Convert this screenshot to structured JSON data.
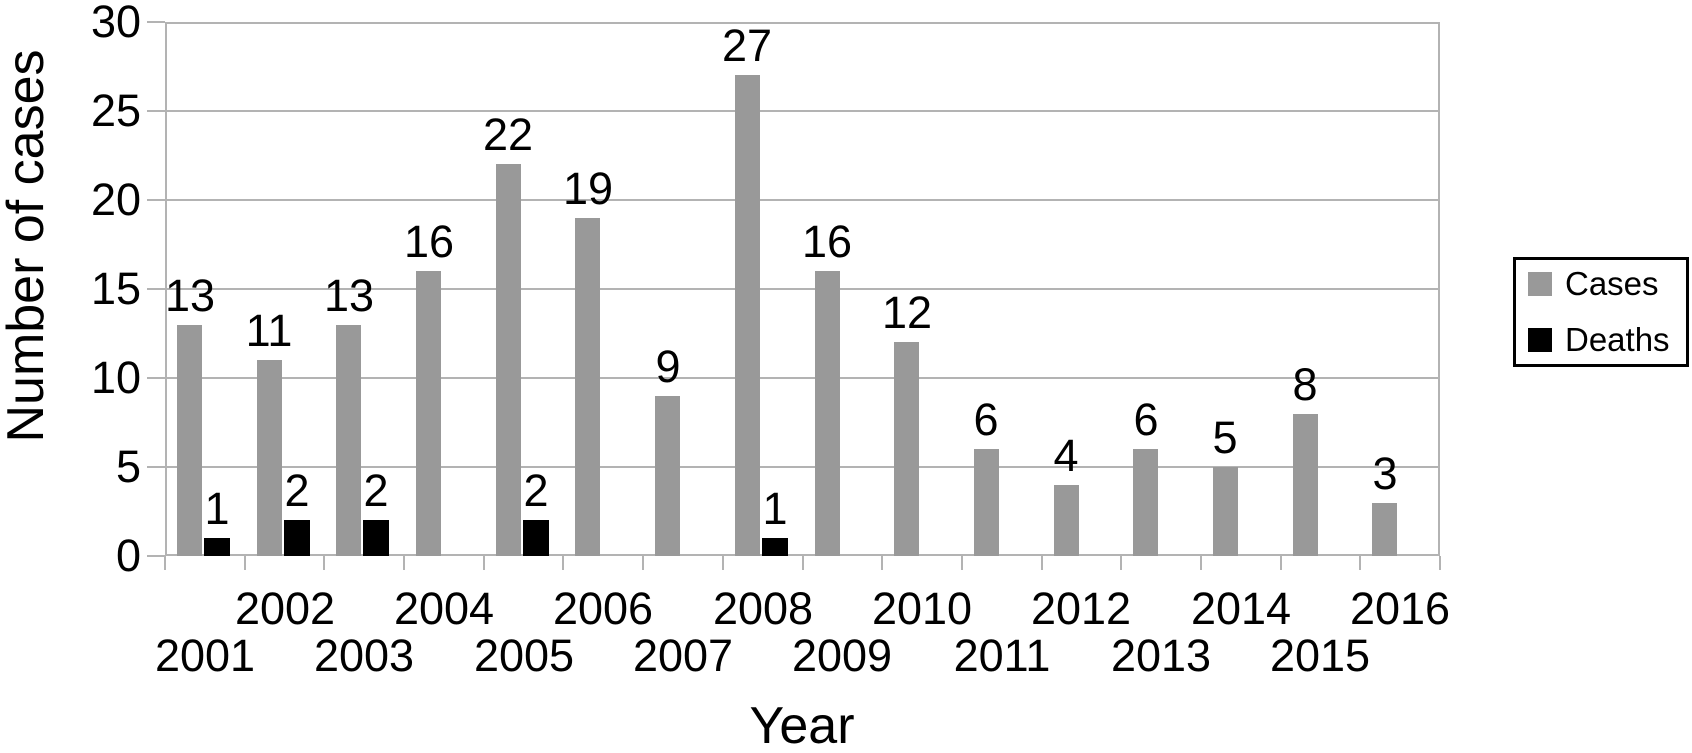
{
  "chart_data": {
    "type": "bar",
    "title": "",
    "xlabel": "Year",
    "ylabel": "Number of cases",
    "categories": [
      "2001",
      "2002",
      "2003",
      "2004",
      "2005",
      "2006",
      "2007",
      "2008",
      "2009",
      "2010",
      "2011",
      "2012",
      "2013",
      "2014",
      "2015",
      "2016"
    ],
    "series": [
      {
        "name": "Cases",
        "color": "#999999",
        "values": [
          13,
          11,
          13,
          16,
          22,
          19,
          9,
          27,
          16,
          12,
          6,
          4,
          6,
          5,
          8,
          3
        ]
      },
      {
        "name": "Deaths",
        "color": "#000000",
        "values": [
          1,
          2,
          2,
          0,
          2,
          0,
          0,
          1,
          0,
          0,
          0,
          0,
          0,
          0,
          0,
          0
        ]
      }
    ],
    "ylim": [
      0,
      30
    ],
    "yticks": [
      0,
      5,
      10,
      15,
      20,
      25,
      30
    ],
    "grid": "horizontal",
    "legend_position": "right",
    "data_labels": "shown above bars; Deaths labeled only when value > 0",
    "x_labels_staggered": "even years on upper row, odd years on lower row"
  },
  "colors": {
    "background": "#ffffff",
    "grid": "#b3b3b3",
    "axis": "#b3b3b3",
    "text": "#000000",
    "cases_bar": "#999999",
    "deaths_bar": "#000000",
    "legend_border": "#000000"
  }
}
